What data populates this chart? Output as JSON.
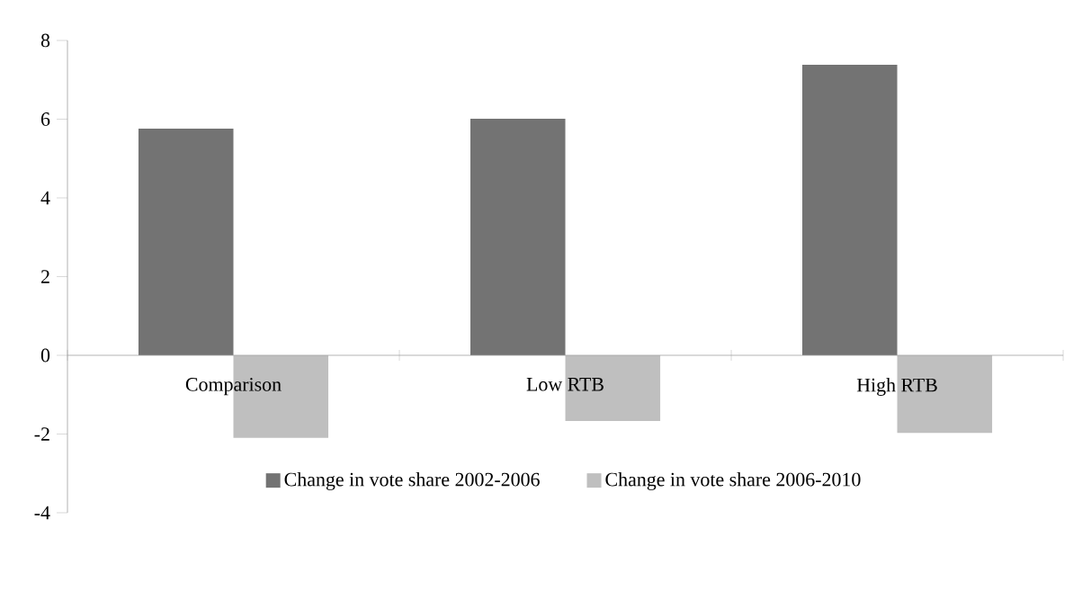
{
  "chart_data": {
    "type": "bar",
    "categories": [
      "Comparison",
      "Low RTB",
      "High RTB"
    ],
    "series": [
      {
        "name": "Change in vote share 2002-2006",
        "color": "#737373",
        "values": [
          5.76,
          6.01,
          7.38
        ]
      },
      {
        "name": "Change in vote share 2006-2010",
        "color": "#bfbfbf",
        "values": [
          -2.1,
          -1.67,
          -1.97
        ]
      }
    ],
    "ylim": [
      -4,
      8
    ],
    "yticks": [
      -4,
      -2,
      0,
      2,
      4,
      6,
      8
    ],
    "legend": "bottom"
  }
}
